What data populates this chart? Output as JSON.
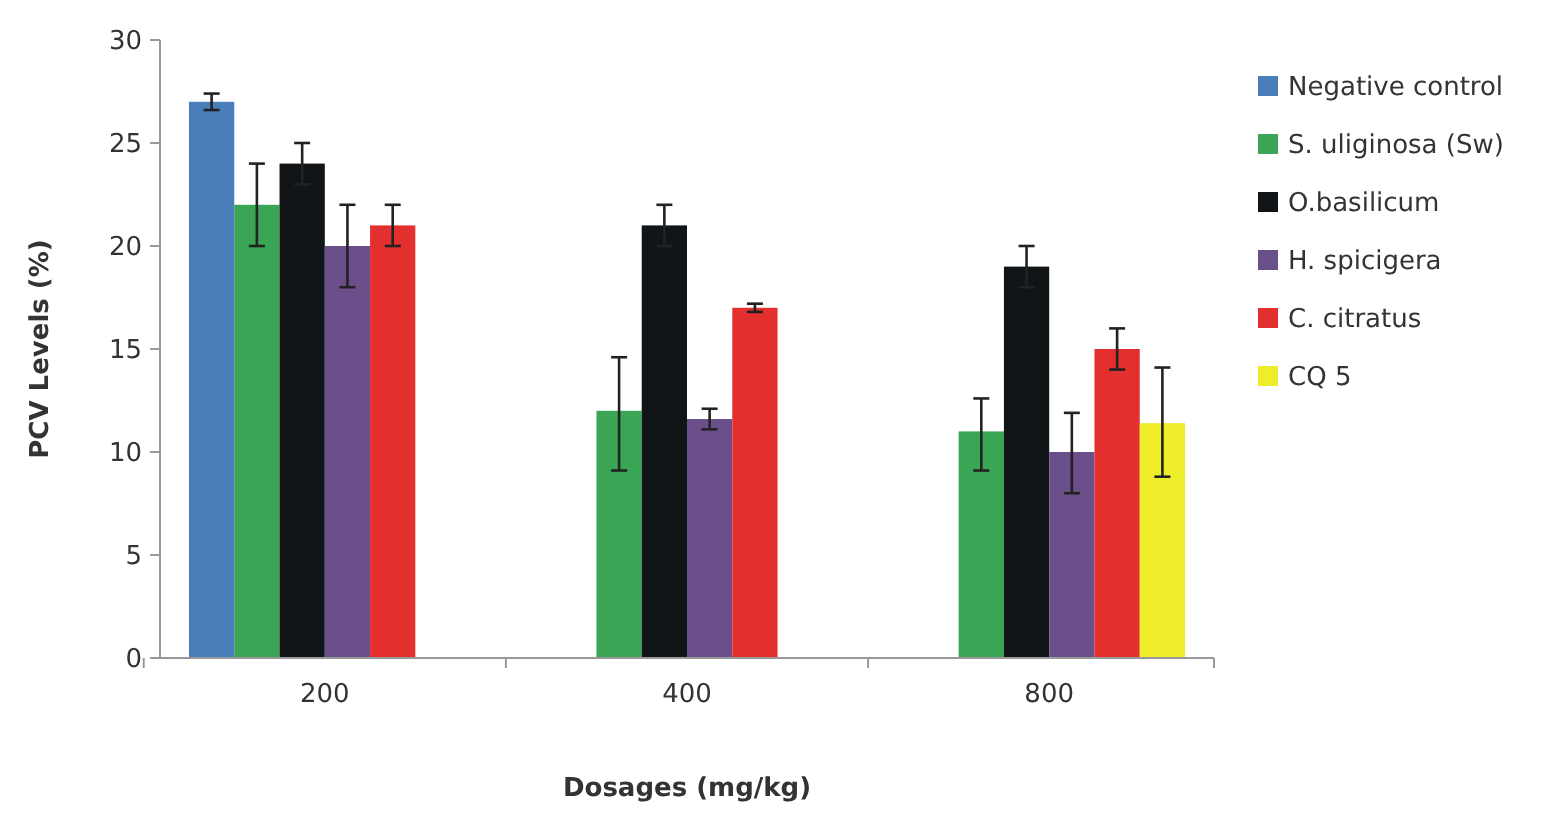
{
  "chart_data": {
    "type": "bar",
    "xlabel": "Dosages (mg/kg)",
    "ylabel": "PCV Levels (%)",
    "categories": [
      "200",
      "400",
      "800"
    ],
    "ylim": [
      0,
      30
    ],
    "yticks": [
      0,
      5,
      10,
      15,
      20,
      25,
      30
    ],
    "grid": false,
    "legend": "right",
    "series": [
      {
        "name": "Negative control",
        "color": "#4a7ebb",
        "values": [
          27,
          null,
          null
        ],
        "errors": [
          0.4,
          null,
          null
        ]
      },
      {
        "name": "S. uliginosa (Sw)",
        "color": "#3aa655",
        "values": [
          22,
          12,
          11
        ],
        "errors": [
          2,
          [
            9.1,
            14.6
          ],
          [
            9.1,
            12.6
          ]
        ]
      },
      {
        "name": "O.basilicum",
        "color": "#111518",
        "values": [
          24,
          21,
          19
        ],
        "errors": [
          1,
          1,
          1
        ]
      },
      {
        "name": "H. spicigera",
        "color": "#6b4f8a",
        "values": [
          20,
          11.6,
          10
        ],
        "errors": [
          2,
          0.5,
          [
            8,
            11.9
          ]
        ]
      },
      {
        "name": "C. citratus",
        "color": "#e3302f",
        "values": [
          21,
          17,
          15
        ],
        "errors": [
          1,
          0.2,
          1
        ]
      },
      {
        "name": "CQ 5",
        "color": "#eded2a",
        "values": [
          null,
          null,
          11.4
        ],
        "errors": [
          null,
          null,
          [
            8.8,
            14.1
          ]
        ]
      }
    ]
  }
}
